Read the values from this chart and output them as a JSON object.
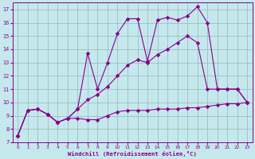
{
  "background_color": "#c5e8ed",
  "grid_color": "#9bbfc6",
  "line_color": "#880088",
  "xlabel": "Windchill (Refroidissement éolien,°C)",
  "xlim": [
    -0.5,
    23.5
  ],
  "ylim": [
    7,
    17.5
  ],
  "yticks": [
    7,
    8,
    9,
    10,
    11,
    12,
    13,
    14,
    15,
    16,
    17
  ],
  "xticks": [
    0,
    1,
    2,
    3,
    4,
    5,
    6,
    7,
    8,
    9,
    10,
    11,
    12,
    13,
    14,
    15,
    16,
    17,
    18,
    19,
    20,
    21,
    22,
    23
  ],
  "series1_x": [
    0,
    1,
    2,
    3,
    4,
    5,
    6,
    7,
    8,
    9,
    10,
    11,
    12,
    13,
    14,
    15,
    16,
    17,
    18,
    19,
    20,
    21,
    22,
    23
  ],
  "series1_y": [
    7.5,
    9.4,
    9.5,
    9.1,
    8.5,
    8.8,
    8.8,
    8.7,
    8.7,
    9.0,
    9.3,
    9.4,
    9.4,
    9.4,
    9.5,
    9.5,
    9.5,
    9.6,
    9.6,
    9.7,
    9.8,
    9.9,
    9.9,
    10.0
  ],
  "series2_x": [
    0,
    1,
    2,
    3,
    4,
    5,
    6,
    7,
    8,
    9,
    10,
    11,
    12,
    13,
    14,
    15,
    16,
    17,
    18,
    19,
    20,
    21,
    22,
    23
  ],
  "series2_y": [
    7.5,
    9.4,
    9.5,
    9.1,
    8.5,
    8.8,
    9.5,
    10.2,
    10.6,
    11.2,
    12.0,
    12.8,
    13.2,
    13.0,
    13.6,
    14.0,
    14.5,
    15.0,
    14.5,
    11.0,
    11.0,
    11.0,
    11.0,
    10.0
  ],
  "series3_x": [
    0,
    1,
    2,
    3,
    4,
    5,
    6,
    7,
    8,
    9,
    10,
    11,
    12,
    13,
    14,
    15,
    16,
    17,
    18,
    19,
    20,
    21,
    22,
    23
  ],
  "series3_y": [
    7.5,
    9.4,
    9.5,
    9.1,
    8.5,
    8.8,
    9.5,
    13.7,
    11.0,
    13.0,
    15.2,
    16.3,
    16.3,
    13.1,
    16.2,
    16.4,
    16.2,
    16.5,
    17.2,
    16.0,
    11.0,
    11.0,
    11.0,
    10.0
  ]
}
